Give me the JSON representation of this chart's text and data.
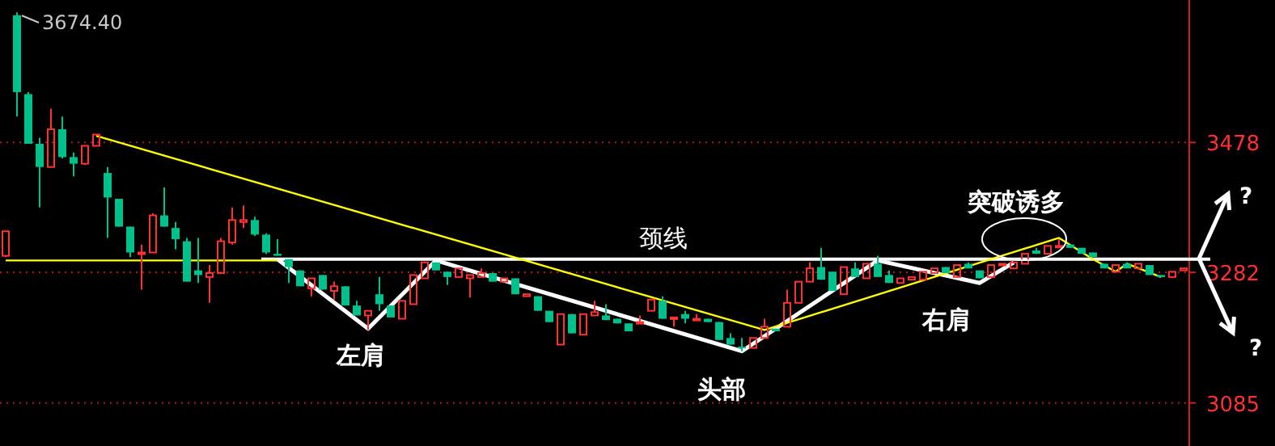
{
  "chart_data": {
    "type": "candlestick",
    "categories": [
      null,
      null,
      null,
      null,
      null,
      null,
      null,
      null,
      null,
      null,
      null,
      null,
      null,
      null,
      null,
      null,
      null,
      null,
      null,
      null,
      null,
      null,
      null,
      null,
      null,
      null,
      null,
      null,
      null,
      null,
      null,
      null,
      null,
      null,
      null,
      null,
      null,
      null,
      null,
      null,
      null,
      null,
      null,
      null,
      null,
      null,
      null,
      null,
      null,
      null,
      null,
      null,
      null,
      null,
      null,
      null,
      null,
      null,
      null,
      null,
      null,
      null,
      null,
      null,
      null,
      null,
      null,
      null,
      null,
      null,
      null,
      null,
      null,
      null,
      null,
      null,
      null,
      null,
      null,
      null,
      null,
      null,
      null,
      null,
      null,
      null,
      null,
      null,
      null,
      null,
      null,
      null,
      null,
      null,
      null,
      null,
      null,
      null,
      null,
      null,
      null,
      null,
      null,
      null,
      null
    ],
    "ohlc": [
      [
        3307,
        3344,
        3305,
        3344
      ],
      [
        3670,
        3674.4,
        3517,
        3554
      ],
      [
        3551,
        3554,
        3476,
        3476
      ],
      [
        3476,
        3485,
        3380,
        3441
      ],
      [
        3441,
        3529,
        3441,
        3498
      ],
      [
        3498,
        3517,
        3454,
        3456
      ],
      [
        3456,
        3463,
        3427,
        3446
      ],
      [
        3446,
        3473,
        3444,
        3473
      ],
      [
        3473,
        3490,
        3473,
        3490
      ],
      [
        3432,
        3441,
        3334,
        3395
      ],
      [
        3393,
        3393,
        3351,
        3351
      ],
      [
        3351,
        3351,
        3305,
        3312
      ],
      [
        3310,
        3324,
        3256,
        3312
      ],
      [
        3312,
        3371,
        3312,
        3368
      ],
      [
        3368,
        3410,
        3351,
        3351
      ],
      [
        3349,
        3358,
        3317,
        3332
      ],
      [
        3329,
        3334,
        3268,
        3268
      ],
      [
        3285,
        3334,
        3266,
        3278
      ],
      [
        3275,
        3293,
        3236,
        3281
      ],
      [
        3281,
        3334,
        3281,
        3329
      ],
      [
        3327,
        3380,
        3324,
        3361
      ],
      [
        3358,
        3383,
        3349,
        3361
      ],
      [
        3361,
        3366,
        3337,
        3339
      ],
      [
        3339,
        3341,
        3310,
        3312
      ],
      [
        3310,
        3332,
        3307,
        3307
      ],
      [
        3302,
        3302,
        3266,
        3290
      ],
      [
        3285,
        3285,
        3261,
        3261
      ],
      [
        3258,
        3273,
        3246,
        3273
      ],
      [
        3278,
        3278,
        3256,
        3256
      ],
      [
        3254,
        3268,
        3241,
        3261
      ],
      [
        3261,
        3261,
        3232,
        3232
      ],
      [
        3232,
        3239,
        3217,
        3217
      ],
      [
        3217,
        3224,
        3195,
        3224
      ],
      [
        3249,
        3275,
        3224,
        3234
      ],
      [
        3232,
        3232,
        3214,
        3214
      ],
      [
        3212,
        3239,
        3212,
        3239
      ],
      [
        3234,
        3278,
        3234,
        3278
      ],
      [
        3273,
        3297,
        3273,
        3297
      ],
      [
        3297,
        3297,
        3285,
        3285
      ],
      [
        3283,
        3283,
        3263,
        3275
      ],
      [
        3275,
        3288,
        3275,
        3288
      ],
      [
        3273,
        3278,
        3244,
        3278
      ],
      [
        3275,
        3288,
        3275,
        3281
      ],
      [
        3281,
        3281,
        3268,
        3268
      ],
      [
        3268,
        3273,
        3268,
        3273
      ],
      [
        3273,
        3273,
        3249,
        3249
      ],
      [
        3246,
        3249,
        3246,
        3249
      ],
      [
        3246,
        3246,
        3224,
        3224
      ],
      [
        3224,
        3224,
        3207,
        3207
      ],
      [
        3173,
        3219,
        3173,
        3219
      ],
      [
        3219,
        3219,
        3190,
        3190
      ],
      [
        3188,
        3219,
        3188,
        3219
      ],
      [
        3217,
        3239,
        3217,
        3222
      ],
      [
        3217,
        3234,
        3210,
        3210
      ],
      [
        3212,
        3212,
        3205,
        3205
      ],
      [
        3205,
        3205,
        3193,
        3193
      ],
      [
        3205,
        3217,
        3205,
        3207
      ],
      [
        3224,
        3241,
        3224,
        3241
      ],
      [
        3239,
        3246,
        3212,
        3212
      ],
      [
        3212,
        3214,
        3200,
        3214
      ],
      [
        3219,
        3224,
        3205,
        3212
      ],
      [
        3210,
        3219,
        3210,
        3212
      ],
      [
        3212,
        3212,
        3207,
        3207
      ],
      [
        3207,
        3207,
        3180,
        3180
      ],
      [
        3183,
        3190,
        3173,
        3173
      ],
      [
        3170,
        3183,
        3163,
        3168
      ],
      [
        3168,
        3183,
        3168,
        3183
      ],
      [
        3183,
        3212,
        3183,
        3200
      ],
      [
        3197,
        3197,
        3193,
        3193
      ],
      [
        3200,
        3256,
        3200,
        3236
      ],
      [
        3236,
        3268,
        3236,
        3268
      ],
      [
        3268,
        3297,
        3268,
        3288
      ],
      [
        3290,
        3319,
        3271,
        3271
      ],
      [
        3283,
        3283,
        3254,
        3254
      ],
      [
        3249,
        3290,
        3249,
        3290
      ],
      [
        3288,
        3297,
        3275,
        3275
      ],
      [
        3273,
        3295,
        3273,
        3295
      ],
      [
        3295,
        3307,
        3275,
        3275
      ],
      [
        3278,
        3285,
        3266,
        3266
      ],
      [
        3266,
        3273,
        3266,
        3273
      ],
      [
        3271,
        3275,
        3271,
        3275
      ],
      [
        3271,
        3283,
        3271,
        3283
      ],
      [
        3281,
        3288,
        3281,
        3288
      ],
      [
        3290,
        3290,
        3281,
        3281
      ],
      [
        3275,
        3293,
        3275,
        3293
      ],
      [
        3295,
        3297,
        3288,
        3288
      ],
      [
        3285,
        3285,
        3273,
        3273
      ],
      [
        3275,
        3293,
        3275,
        3293
      ],
      [
        3293,
        3295,
        3293,
        3295
      ],
      [
        3288,
        3297,
        3288,
        3297
      ],
      [
        3295,
        3310,
        3295,
        3310
      ],
      [
        3315,
        3319,
        3310,
        3310
      ],
      [
        3310,
        3322,
        3310,
        3322
      ],
      [
        3321,
        3332,
        3321,
        3322
      ],
      [
        3324,
        3324,
        3319,
        3319
      ],
      [
        3319,
        3319,
        3310,
        3310
      ],
      [
        3312,
        3312,
        3305,
        3305
      ],
      [
        3295,
        3295,
        3288,
        3288
      ],
      [
        3283,
        3293,
        3283,
        3293
      ],
      [
        3295,
        3297,
        3288,
        3288
      ],
      [
        3288,
        3295,
        3288,
        3295
      ],
      [
        3293,
        3293,
        3278,
        3278
      ],
      [
        3278,
        3278,
        3275,
        3275
      ],
      [
        3275,
        3283,
        3275,
        3283
      ],
      [
        3285,
        3288,
        3285,
        3288
      ]
    ],
    "colors": [
      "#ff3232",
      "#00c08b",
      "#00c08b",
      "#00c08b",
      "#ff3232",
      "#00c08b",
      "#00c08b",
      "#ff3232",
      "#ff3232",
      "#00c08b",
      "#00c08b",
      "#00c08b",
      "#ff3232",
      "#ff3232",
      "#00c08b",
      "#00c08b",
      "#00c08b",
      "#00c08b",
      "#ff3232",
      "#ff3232",
      "#ff3232",
      "#ff3232",
      "#00c08b",
      "#00c08b",
      "#00c08b",
      "#00c08b",
      "#00c08b",
      "#ff3232",
      "#00c08b",
      "#ff3232",
      "#00c08b",
      "#00c08b",
      "#ff3232",
      "#00c08b",
      "#00c08b",
      "#ff3232",
      "#ff3232",
      "#ff3232",
      "#00c08b",
      "#00c08b",
      "#ff3232",
      "#ff3232",
      "#ff3232",
      "#00c08b",
      "#ff3232",
      "#00c08b",
      "#ff3232",
      "#00c08b",
      "#00c08b",
      "#ff3232",
      "#00c08b",
      "#ff3232",
      "#ff3232",
      "#00c08b",
      "#00c08b",
      "#00c08b",
      "#ff3232",
      "#ff3232",
      "#00c08b",
      "#ff3232",
      "#00c08b",
      "#ff3232",
      "#00c08b",
      "#00c08b",
      "#00c08b",
      "#00c08b",
      "#ff3232",
      "#ff3232",
      "#00c08b",
      "#ff3232",
      "#ff3232",
      "#ff3232",
      "#00c08b",
      "#00c08b",
      "#ff3232",
      "#00c08b",
      "#ff3232",
      "#00c08b",
      "#00c08b",
      "#ff3232",
      "#ff3232",
      "#ff3232",
      "#ff3232",
      "#00c08b",
      "#ff3232",
      "#00c08b",
      "#00c08b",
      "#ff3232",
      "#ff3232",
      "#ff3232",
      "#ff3232",
      "#00c08b",
      "#ff3232",
      "#ff3232",
      "#00c08b",
      "#00c08b",
      "#00c08b",
      "#00c08b",
      "#ff3232",
      "#00c08b",
      "#ff3232",
      "#00c08b",
      "#00c08b",
      "#ff3232",
      "#ff3232"
    ],
    "series": [
      {
        "type": "line",
        "color": "#ffffff",
        "values": [
          null,
          null,
          null,
          null,
          null,
          null,
          null,
          null,
          null,
          null,
          null,
          null,
          null,
          null,
          null,
          null,
          null,
          null,
          null,
          null,
          null,
          null,
          null,
          null,
          3302,
          null,
          null,
          null,
          null,
          null,
          null,
          null,
          3197,
          null,
          null,
          null,
          null,
          null,
          3300,
          null,
          null,
          null,
          null,
          null,
          null,
          null,
          null,
          null,
          null,
          null,
          null,
          null,
          null,
          null,
          null,
          null,
          null,
          null,
          null,
          null,
          null,
          null,
          null,
          null,
          null,
          3163,
          null,
          null,
          null,
          null,
          null,
          null,
          null,
          null,
          null,
          null,
          null,
          3300,
          null,
          null,
          null,
          null,
          null,
          null,
          null,
          null,
          3266,
          null,
          null,
          3297,
          null,
          null,
          null,
          null,
          null,
          null,
          null,
          null,
          null,
          null,
          null,
          null,
          null,
          null,
          null
        ]
      },
      {
        "type": "line",
        "color": "#ffff00",
        "values": [
          null,
          null,
          null,
          null,
          null,
          null,
          null,
          null,
          3488,
          null,
          null,
          null,
          null,
          null,
          null,
          null,
          null,
          null,
          null,
          null,
          null,
          null,
          null,
          null,
          null,
          null,
          null,
          null,
          null,
          null,
          null,
          null,
          null,
          null,
          null,
          null,
          null,
          null,
          null,
          null,
          null,
          null,
          null,
          null,
          null,
          null,
          null,
          null,
          null,
          null,
          null,
          null,
          null,
          null,
          null,
          null,
          null,
          null,
          null,
          null,
          null,
          null,
          null,
          null,
          null,
          null,
          null,
          3195,
          null,
          null,
          null,
          null,
          null,
          null,
          null,
          null,
          null,
          null,
          null,
          null,
          null,
          null,
          null,
          null,
          null,
          null,
          null,
          null,
          null,
          null,
          null,
          null,
          null,
          3334,
          null,
          null,
          3302,
          null,
          3283,
          3295,
          null,
          null,
          3275,
          null,
          null
        ]
      },
      {
        "type": "line",
        "color": "#ffff00",
        "values": [
          3300,
          null,
          null,
          null,
          null,
          null,
          null,
          null,
          null,
          null,
          null,
          null,
          null,
          null,
          null,
          null,
          null,
          null,
          null,
          null,
          null,
          null,
          null,
          null,
          3300,
          null,
          null,
          null,
          null,
          null,
          null,
          null,
          null,
          null,
          null,
          null,
          null,
          null,
          null,
          null,
          null,
          null,
          null,
          null,
          null,
          null,
          null,
          null,
          null,
          null,
          null,
          null,
          null,
          null,
          null,
          null,
          null,
          null,
          null,
          null,
          null,
          null,
          null,
          null,
          null,
          null,
          null,
          null,
          null,
          null,
          null,
          null,
          null,
          null,
          null,
          null,
          null,
          null,
          null,
          null,
          null,
          null,
          null,
          null,
          null,
          null,
          null,
          null,
          null,
          null,
          null,
          null,
          null,
          null,
          null,
          null,
          null,
          null,
          null,
          null,
          null,
          null,
          null,
          null,
          null
        ]
      }
    ],
    "ref_lines": [
      {
        "axis": "y",
        "value": 3302,
        "label": "颈线",
        "color": "#ffffff"
      }
    ],
    "ylim": [
      3020,
      3693
    ],
    "yticks": [
      3085,
      3282,
      3478
    ],
    "grid": "y",
    "annotations": [
      "3674.40",
      "左肩",
      "头部",
      "右肩",
      "突破诱多",
      "?",
      "?"
    ]
  }
}
